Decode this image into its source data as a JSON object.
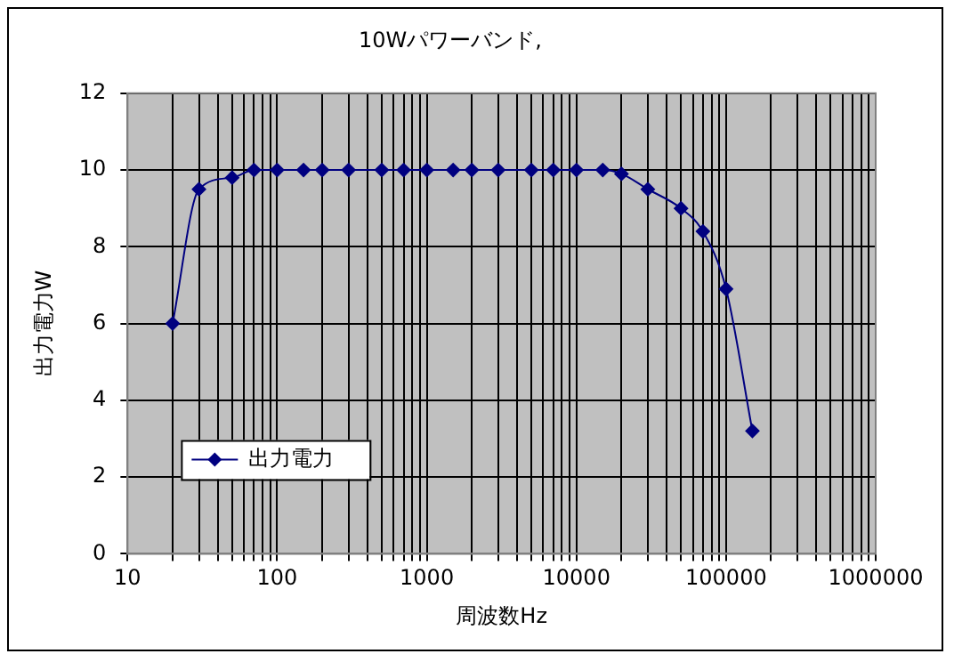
{
  "chart_data": {
    "type": "line",
    "title": "10Wパワーバンド,",
    "xlabel": "周波数Hz",
    "ylabel": "出力電力W",
    "x": [
      20,
      30,
      50,
      70,
      100,
      150,
      200,
      300,
      500,
      700,
      1000,
      1500,
      2000,
      3000,
      5000,
      7000,
      10000,
      15000,
      20000,
      30000,
      50000,
      70000,
      100000,
      150000
    ],
    "series": [
      {
        "name": "出力電力",
        "color": "#000080",
        "values": [
          6,
          9.5,
          9.8,
          10,
          10,
          10,
          10,
          10,
          10,
          10,
          10,
          10,
          10,
          10,
          10,
          10,
          10,
          10,
          9.9,
          9.5,
          9,
          8.4,
          6.9,
          3.2
        ]
      }
    ],
    "log": "x",
    "xlim": [
      10,
      1000000
    ],
    "xticks": [
      10,
      {
        "value": 20,
        "label": null
      },
      {
        "value": 30,
        "label": null
      },
      {
        "value": 40,
        "label": null
      },
      {
        "value": 50,
        "label": null
      },
      {
        "value": 60,
        "label": null
      },
      {
        "value": 70,
        "label": null
      },
      {
        "value": 80,
        "label": null
      },
      {
        "value": 90,
        "label": null
      },
      100,
      {
        "value": 200,
        "label": null
      },
      {
        "value": 300,
        "label": null
      },
      {
        "value": 400,
        "label": null
      },
      {
        "value": 500,
        "label": null
      },
      {
        "value": 600,
        "label": null
      },
      {
        "value": 700,
        "label": null
      },
      {
        "value": 800,
        "label": null
      },
      {
        "value": 900,
        "label": null
      },
      1000,
      {
        "value": 2000,
        "label": null
      },
      {
        "value": 3000,
        "label": null
      },
      {
        "value": 4000,
        "label": null
      },
      {
        "value": 5000,
        "label": null
      },
      {
        "value": 6000,
        "label": null
      },
      {
        "value": 7000,
        "label": null
      },
      {
        "value": 8000,
        "label": null
      },
      {
        "value": 9000,
        "label": null
      },
      10000,
      {
        "value": 20000,
        "label": null
      },
      {
        "value": 30000,
        "label": null
      },
      {
        "value": 40000,
        "label": null
      },
      {
        "value": 50000,
        "label": null
      },
      {
        "value": 60000,
        "label": null
      },
      {
        "value": 70000,
        "label": null
      },
      {
        "value": 80000,
        "label": null
      },
      {
        "value": 90000,
        "label": null
      },
      100000,
      {
        "value": 200000,
        "label": null
      },
      {
        "value": 300000,
        "label": null
      },
      {
        "value": 400000,
        "label": null
      },
      {
        "value": 500000,
        "label": null
      },
      {
        "value": 600000,
        "label": null
      },
      {
        "value": 700000,
        "label": null
      },
      {
        "value": 800000,
        "label": null
      },
      {
        "value": 900000,
        "label": null
      },
      1000000
    ],
    "ylim": [
      0,
      12
    ],
    "yticks": [
      0,
      2,
      4,
      6,
      8,
      10,
      12
    ],
    "grid": true,
    "legend": "bottom left",
    "marker": "diamond",
    "line_style": "solid"
  }
}
